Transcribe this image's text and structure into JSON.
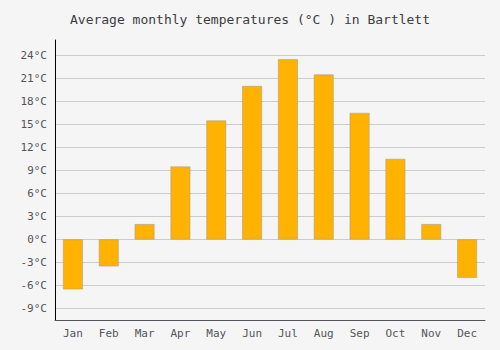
{
  "chart_data": {
    "type": "bar",
    "title": "Average monthly temperatures (°C ) in Bartlett",
    "categories": [
      "Jan",
      "Feb",
      "Mar",
      "Apr",
      "May",
      "Jun",
      "Jul",
      "Aug",
      "Sep",
      "Oct",
      "Nov",
      "Dec"
    ],
    "values": [
      -6.5,
      -3.5,
      2.0,
      9.5,
      15.5,
      20.0,
      23.5,
      21.5,
      16.5,
      10.5,
      2.0,
      -5.0
    ],
    "color": "#FFB300",
    "ylim": [
      -10.5,
      26.0
    ],
    "yticks": [
      {
        "value": -9,
        "label": "-9°C"
      },
      {
        "value": -6,
        "label": "-6°C"
      },
      {
        "value": -3,
        "label": "-3°C"
      },
      {
        "value": 0,
        "label": "0°C"
      },
      {
        "value": 3,
        "label": "3°C"
      },
      {
        "value": 6,
        "label": "6°C"
      },
      {
        "value": 9,
        "label": "9°C"
      },
      {
        "value": 12,
        "label": "12°C"
      },
      {
        "value": 15,
        "label": "15°C"
      },
      {
        "value": 18,
        "label": "18°C"
      },
      {
        "value": 21,
        "label": "21°C"
      },
      {
        "value": 24,
        "label": "24°C"
      }
    ],
    "grid": true
  }
}
